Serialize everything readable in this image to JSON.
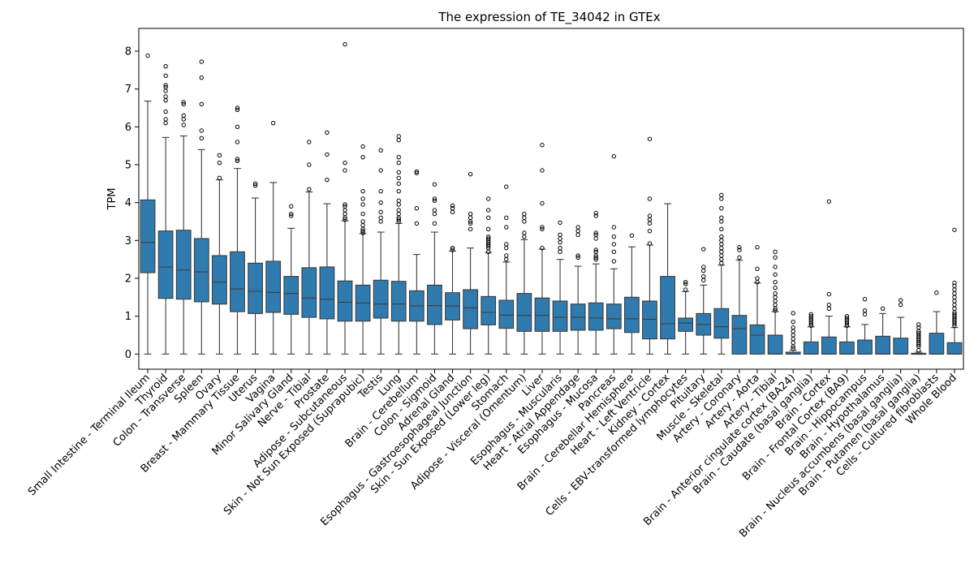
{
  "chart_data": {
    "type": "box",
    "title": "The expression of TE_34042 in GTEx",
    "xlabel": "",
    "ylabel": "TPM",
    "ylim": [
      -0.4,
      8.6
    ],
    "yticks": [
      0,
      1,
      2,
      3,
      4,
      5,
      6,
      7,
      8
    ],
    "color": "#2f7bb0",
    "categories": [
      {
        "name": "Small Intestine - Terminal Ileum",
        "min": 0,
        "q1": 2.15,
        "median": 2.95,
        "q3": 4.07,
        "max": 6.68,
        "outliers": [
          7.88
        ]
      },
      {
        "name": "Thyroid",
        "min": 0,
        "q1": 1.47,
        "median": 2.3,
        "q3": 3.25,
        "max": 5.72,
        "outliers": [
          6.1,
          6.2,
          6.4,
          6.7,
          6.8,
          6.95,
          7.05,
          7.1,
          7.35,
          7.6
        ]
      },
      {
        "name": "Colon - Transverse",
        "min": 0,
        "q1": 1.45,
        "median": 2.22,
        "q3": 3.27,
        "max": 5.76,
        "outliers": [
          6.05,
          6.2,
          6.3,
          6.6,
          6.65
        ]
      },
      {
        "name": "Spleen",
        "min": 0,
        "q1": 1.38,
        "median": 2.17,
        "q3": 3.05,
        "max": 5.4,
        "outliers": [
          5.7,
          5.9,
          6.6,
          7.3,
          7.72
        ]
      },
      {
        "name": "Ovary",
        "min": 0,
        "q1": 1.32,
        "median": 1.9,
        "q3": 2.6,
        "max": 4.6,
        "outliers": [
          4.65,
          5.05,
          5.25
        ]
      },
      {
        "name": "Breast - Mammary Tissue",
        "min": 0,
        "q1": 1.12,
        "median": 1.72,
        "q3": 2.7,
        "max": 4.9,
        "outliers": [
          5.1,
          5.15,
          5.6,
          6.0,
          6.45,
          6.5
        ]
      },
      {
        "name": "Uterus",
        "min": 0,
        "q1": 1.07,
        "median": 1.66,
        "q3": 2.4,
        "max": 4.12,
        "outliers": [
          4.45,
          4.5
        ]
      },
      {
        "name": "Vagina",
        "min": 0,
        "q1": 1.1,
        "median": 1.63,
        "q3": 2.45,
        "max": 4.53,
        "outliers": [
          6.1
        ]
      },
      {
        "name": "Minor Salivary Gland",
        "min": 0,
        "q1": 1.05,
        "median": 1.6,
        "q3": 2.05,
        "max": 3.32,
        "outliers": [
          3.65,
          3.7,
          3.9
        ]
      },
      {
        "name": "Nerve - Tibial",
        "min": 0,
        "q1": 0.97,
        "median": 1.48,
        "q3": 2.28,
        "max": 4.28,
        "outliers": [
          4.35,
          5.0,
          5.6
        ]
      },
      {
        "name": "Prostate",
        "min": 0,
        "q1": 0.93,
        "median": 1.45,
        "q3": 2.3,
        "max": 3.97,
        "outliers": [
          4.6,
          5.27,
          5.85
        ]
      },
      {
        "name": "Adipose - Subcutaneous",
        "min": 0,
        "q1": 0.87,
        "median": 1.37,
        "q3": 1.93,
        "max": 3.52,
        "outliers": [
          3.55,
          3.6,
          3.7,
          3.8,
          3.9,
          3.95,
          4.85,
          5.05,
          8.18
        ]
      },
      {
        "name": "Skin - Not Sun Exposed (Suprapubic)",
        "min": 0,
        "q1": 0.87,
        "median": 1.35,
        "q3": 1.82,
        "max": 3.18,
        "outliers": [
          3.2,
          3.25,
          3.3,
          3.4,
          3.5,
          3.7,
          3.95,
          4.1,
          4.3,
          5.2,
          5.48
        ]
      },
      {
        "name": "Testis",
        "min": 0,
        "q1": 0.95,
        "median": 1.32,
        "q3": 1.95,
        "max": 3.22,
        "outliers": [
          3.5,
          3.6,
          3.75,
          4.0,
          4.3,
          4.85,
          5.38
        ]
      },
      {
        "name": "Lung",
        "min": 0,
        "q1": 0.87,
        "median": 1.32,
        "q3": 1.92,
        "max": 3.45,
        "outliers": [
          3.5,
          3.55,
          3.6,
          3.7,
          3.8,
          3.95,
          4.05,
          4.3,
          4.5,
          4.65,
          4.8,
          5.05,
          5.2,
          5.65,
          5.75
        ]
      },
      {
        "name": "Brain - Cerebellum",
        "min": 0,
        "q1": 0.87,
        "median": 1.27,
        "q3": 1.67,
        "max": 2.63,
        "outliers": [
          3.45,
          3.85,
          4.78,
          4.82
        ]
      },
      {
        "name": "Colon - Sigmoid",
        "min": 0,
        "q1": 0.78,
        "median": 1.28,
        "q3": 1.82,
        "max": 3.22,
        "outliers": [
          3.45,
          3.7,
          3.8,
          4.05,
          4.1,
          4.48
        ]
      },
      {
        "name": "Adrenal Gland",
        "min": 0,
        "q1": 0.9,
        "median": 1.27,
        "q3": 1.62,
        "max": 2.72,
        "outliers": [
          2.75,
          2.8,
          3.75,
          3.85,
          3.92
        ]
      },
      {
        "name": "Esophagus - Gastroesophageal Junction",
        "min": 0,
        "q1": 0.67,
        "median": 1.22,
        "q3": 1.7,
        "max": 2.8,
        "outliers": [
          3.3,
          3.45,
          3.5,
          3.6,
          3.7,
          4.75
        ]
      },
      {
        "name": "Skin - Sun Exposed (Lower leg)",
        "min": 0,
        "q1": 0.77,
        "median": 1.1,
        "q3": 1.52,
        "max": 2.68,
        "outliers": [
          2.7,
          2.8,
          2.85,
          2.9,
          2.95,
          3.0,
          3.05,
          3.1,
          3.3,
          3.6,
          3.8,
          4.1
        ]
      },
      {
        "name": "Stomach",
        "min": 0,
        "q1": 0.68,
        "median": 1.03,
        "q3": 1.42,
        "max": 2.43,
        "outliers": [
          2.5,
          2.6,
          2.8,
          2.9,
          3.35,
          3.6,
          4.42
        ]
      },
      {
        "name": "Adipose - Visceral (Omentum)",
        "min": 0,
        "q1": 0.6,
        "median": 1.02,
        "q3": 1.6,
        "max": 3.02,
        "outliers": [
          3.1,
          3.2,
          3.5,
          3.6,
          3.7
        ]
      },
      {
        "name": "Liver",
        "min": 0,
        "q1": 0.6,
        "median": 1.02,
        "q3": 1.48,
        "max": 2.77,
        "outliers": [
          2.8,
          3.3,
          3.35,
          3.98,
          4.85,
          5.52
        ]
      },
      {
        "name": "Esophagus - Muscularis",
        "min": 0,
        "q1": 0.6,
        "median": 0.97,
        "q3": 1.4,
        "max": 2.5,
        "outliers": [
          2.7,
          2.8,
          2.95,
          3.05,
          3.15,
          3.47
        ]
      },
      {
        "name": "Heart - Atrial Appendage",
        "min": 0,
        "q1": 0.63,
        "median": 0.97,
        "q3": 1.32,
        "max": 2.32,
        "outliers": [
          2.55,
          2.6,
          3.15,
          3.25,
          3.35
        ]
      },
      {
        "name": "Esophagus - Mucosa",
        "min": 0,
        "q1": 0.63,
        "median": 0.95,
        "q3": 1.35,
        "max": 2.38,
        "outliers": [
          2.5,
          2.55,
          2.6,
          2.7,
          2.75,
          3.05,
          3.15,
          3.2,
          3.65,
          3.72
        ]
      },
      {
        "name": "Pancreas",
        "min": 0,
        "q1": 0.67,
        "median": 0.93,
        "q3": 1.32,
        "max": 2.25,
        "outliers": [
          2.45,
          2.7,
          2.9,
          3.1,
          3.35,
          5.22
        ]
      },
      {
        "name": "Brain - Cerebellar Hemisphere",
        "min": 0,
        "q1": 0.57,
        "median": 0.93,
        "q3": 1.5,
        "max": 2.83,
        "outliers": [
          3.13
        ]
      },
      {
        "name": "Heart - Left Ventricle",
        "min": 0,
        "q1": 0.4,
        "median": 0.92,
        "q3": 1.4,
        "max": 2.88,
        "outliers": [
          2.92,
          3.25,
          3.45,
          3.55,
          3.65,
          4.1,
          5.68
        ]
      },
      {
        "name": "Kidney - Cortex",
        "min": 0,
        "q1": 0.4,
        "median": 0.8,
        "q3": 2.05,
        "max": 3.97,
        "outliers": []
      },
      {
        "name": "Cells - EBV-transformed lymphocytes",
        "min": 0,
        "q1": 0.6,
        "median": 0.82,
        "q3": 0.95,
        "max": 1.65,
        "outliers": [
          1.7,
          1.85,
          1.9
        ]
      },
      {
        "name": "Pituitary",
        "min": 0,
        "q1": 0.5,
        "median": 0.78,
        "q3": 1.07,
        "max": 1.82,
        "outliers": [
          1.95,
          2.05,
          2.2,
          2.3,
          2.77
        ]
      },
      {
        "name": "Muscle - Skeletal",
        "min": 0,
        "q1": 0.42,
        "median": 0.72,
        "q3": 1.2,
        "max": 2.35,
        "outliers": [
          2.4,
          2.5,
          2.6,
          2.7,
          2.8,
          2.9,
          3.0,
          3.1,
          3.3,
          3.5,
          3.6,
          3.85,
          4.1,
          4.2
        ]
      },
      {
        "name": "Artery - Coronary",
        "min": 0,
        "q1": 0.0,
        "median": 0.67,
        "q3": 1.02,
        "max": 2.48,
        "outliers": [
          2.55,
          2.75,
          2.82
        ]
      },
      {
        "name": "Artery - Aorta",
        "min": 0,
        "q1": 0.0,
        "median": 0.5,
        "q3": 0.77,
        "max": 1.88,
        "outliers": [
          1.9,
          2.0,
          2.25,
          2.82
        ]
      },
      {
        "name": "Artery - Tibial",
        "min": 0,
        "q1": 0.0,
        "median": 0.0,
        "q3": 0.5,
        "max": 1.12,
        "outliers": [
          1.15,
          1.2,
          1.3,
          1.4,
          1.5,
          1.6,
          1.75,
          1.9,
          2.1,
          2.3,
          2.55,
          2.7
        ]
      },
      {
        "name": "Brain - Anterior cingulate cortex (BA24)",
        "min": 0,
        "q1": 0.0,
        "median": 0.0,
        "q3": 0.05,
        "max": 0.1,
        "outliers": [
          0.15,
          0.2,
          0.3,
          0.4,
          0.5,
          0.6,
          0.7,
          0.85,
          1.08
        ]
      },
      {
        "name": "Brain - Caudate (basal ganglia)",
        "min": 0,
        "q1": 0.0,
        "median": 0.0,
        "q3": 0.32,
        "max": 0.72,
        "outliers": [
          0.75,
          0.8,
          0.85,
          0.9,
          0.95,
          1.0,
          1.05
        ]
      },
      {
        "name": "Brain - Cortex",
        "min": 0,
        "q1": 0.0,
        "median": 0.0,
        "q3": 0.45,
        "max": 1.0,
        "outliers": [
          1.2,
          1.3,
          1.58,
          4.03
        ]
      },
      {
        "name": "Brain - Frontal Cortex (BA9)",
        "min": 0,
        "q1": 0.0,
        "median": 0.0,
        "q3": 0.32,
        "max": 0.72,
        "outliers": [
          0.75,
          0.8,
          0.85,
          0.9,
          0.95,
          1.0
        ]
      },
      {
        "name": "Brain - Hippocampus",
        "min": 0,
        "q1": 0.0,
        "median": 0.0,
        "q3": 0.37,
        "max": 0.78,
        "outliers": [
          1.05,
          1.15,
          1.45
        ]
      },
      {
        "name": "Brain - Hypothalamus",
        "min": 0,
        "q1": 0.0,
        "median": 0.0,
        "q3": 0.47,
        "max": 1.07,
        "outliers": [
          1.2
        ]
      },
      {
        "name": "Brain - Nucleus accumbens (basal ganglia)",
        "min": 0,
        "q1": 0.0,
        "median": 0.0,
        "q3": 0.42,
        "max": 0.97,
        "outliers": [
          1.3,
          1.42
        ]
      },
      {
        "name": "Brain - Putamen (basal ganglia)",
        "min": 0,
        "q1": 0.0,
        "median": 0.0,
        "q3": 0.02,
        "max": 0.05,
        "outliers": [
          0.1,
          0.2,
          0.25,
          0.3,
          0.35,
          0.4,
          0.45,
          0.5,
          0.55,
          0.6,
          0.7,
          0.78
        ]
      },
      {
        "name": "Cells - Cultured fibroblasts",
        "min": 0,
        "q1": 0.0,
        "median": 0.0,
        "q3": 0.55,
        "max": 1.12,
        "outliers": [
          1.62
        ]
      },
      {
        "name": "Whole Blood",
        "min": 0,
        "q1": 0.0,
        "median": 0.0,
        "q3": 0.3,
        "max": 0.7,
        "outliers": [
          0.75,
          0.8,
          0.85,
          0.9,
          0.95,
          1.0,
          1.05,
          1.1,
          1.2,
          1.3,
          1.4,
          1.5,
          1.6,
          1.7,
          1.8,
          1.88,
          3.28
        ]
      }
    ]
  }
}
